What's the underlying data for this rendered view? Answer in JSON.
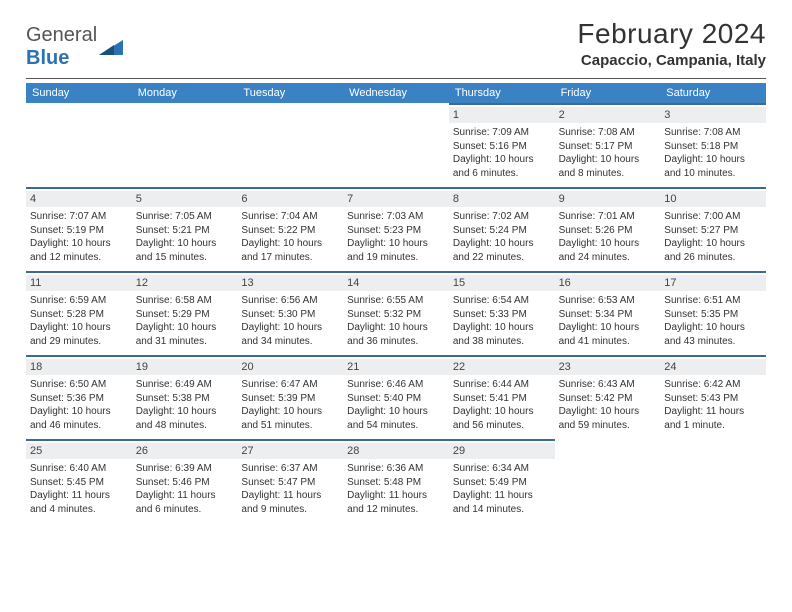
{
  "logo": {
    "word1": "General",
    "word2": "Blue"
  },
  "title": "February 2024",
  "location": "Capaccio, Campania, Italy",
  "colors": {
    "header_bg": "#3b82c4",
    "header_text": "#ffffff",
    "cell_border": "#3b6a94",
    "datenum_bg": "#eceeef",
    "logo_blue": "#2a72b5"
  },
  "day_headers": [
    "Sunday",
    "Monday",
    "Tuesday",
    "Wednesday",
    "Thursday",
    "Friday",
    "Saturday"
  ],
  "grid_cols": 7,
  "first_weekday_index": 4,
  "days": [
    {
      "n": 1,
      "sunrise": "7:09 AM",
      "sunset": "5:16 PM",
      "daylight": "10 hours and 6 minutes."
    },
    {
      "n": 2,
      "sunrise": "7:08 AM",
      "sunset": "5:17 PM",
      "daylight": "10 hours and 8 minutes."
    },
    {
      "n": 3,
      "sunrise": "7:08 AM",
      "sunset": "5:18 PM",
      "daylight": "10 hours and 10 minutes."
    },
    {
      "n": 4,
      "sunrise": "7:07 AM",
      "sunset": "5:19 PM",
      "daylight": "10 hours and 12 minutes."
    },
    {
      "n": 5,
      "sunrise": "7:05 AM",
      "sunset": "5:21 PM",
      "daylight": "10 hours and 15 minutes."
    },
    {
      "n": 6,
      "sunrise": "7:04 AM",
      "sunset": "5:22 PM",
      "daylight": "10 hours and 17 minutes."
    },
    {
      "n": 7,
      "sunrise": "7:03 AM",
      "sunset": "5:23 PM",
      "daylight": "10 hours and 19 minutes."
    },
    {
      "n": 8,
      "sunrise": "7:02 AM",
      "sunset": "5:24 PM",
      "daylight": "10 hours and 22 minutes."
    },
    {
      "n": 9,
      "sunrise": "7:01 AM",
      "sunset": "5:26 PM",
      "daylight": "10 hours and 24 minutes."
    },
    {
      "n": 10,
      "sunrise": "7:00 AM",
      "sunset": "5:27 PM",
      "daylight": "10 hours and 26 minutes."
    },
    {
      "n": 11,
      "sunrise": "6:59 AM",
      "sunset": "5:28 PM",
      "daylight": "10 hours and 29 minutes."
    },
    {
      "n": 12,
      "sunrise": "6:58 AM",
      "sunset": "5:29 PM",
      "daylight": "10 hours and 31 minutes."
    },
    {
      "n": 13,
      "sunrise": "6:56 AM",
      "sunset": "5:30 PM",
      "daylight": "10 hours and 34 minutes."
    },
    {
      "n": 14,
      "sunrise": "6:55 AM",
      "sunset": "5:32 PM",
      "daylight": "10 hours and 36 minutes."
    },
    {
      "n": 15,
      "sunrise": "6:54 AM",
      "sunset": "5:33 PM",
      "daylight": "10 hours and 38 minutes."
    },
    {
      "n": 16,
      "sunrise": "6:53 AM",
      "sunset": "5:34 PM",
      "daylight": "10 hours and 41 minutes."
    },
    {
      "n": 17,
      "sunrise": "6:51 AM",
      "sunset": "5:35 PM",
      "daylight": "10 hours and 43 minutes."
    },
    {
      "n": 18,
      "sunrise": "6:50 AM",
      "sunset": "5:36 PM",
      "daylight": "10 hours and 46 minutes."
    },
    {
      "n": 19,
      "sunrise": "6:49 AM",
      "sunset": "5:38 PM",
      "daylight": "10 hours and 48 minutes."
    },
    {
      "n": 20,
      "sunrise": "6:47 AM",
      "sunset": "5:39 PM",
      "daylight": "10 hours and 51 minutes."
    },
    {
      "n": 21,
      "sunrise": "6:46 AM",
      "sunset": "5:40 PM",
      "daylight": "10 hours and 54 minutes."
    },
    {
      "n": 22,
      "sunrise": "6:44 AM",
      "sunset": "5:41 PM",
      "daylight": "10 hours and 56 minutes."
    },
    {
      "n": 23,
      "sunrise": "6:43 AM",
      "sunset": "5:42 PM",
      "daylight": "10 hours and 59 minutes."
    },
    {
      "n": 24,
      "sunrise": "6:42 AM",
      "sunset": "5:43 PM",
      "daylight": "11 hours and 1 minute."
    },
    {
      "n": 25,
      "sunrise": "6:40 AM",
      "sunset": "5:45 PM",
      "daylight": "11 hours and 4 minutes."
    },
    {
      "n": 26,
      "sunrise": "6:39 AM",
      "sunset": "5:46 PM",
      "daylight": "11 hours and 6 minutes."
    },
    {
      "n": 27,
      "sunrise": "6:37 AM",
      "sunset": "5:47 PM",
      "daylight": "11 hours and 9 minutes."
    },
    {
      "n": 28,
      "sunrise": "6:36 AM",
      "sunset": "5:48 PM",
      "daylight": "11 hours and 12 minutes."
    },
    {
      "n": 29,
      "sunrise": "6:34 AM",
      "sunset": "5:49 PM",
      "daylight": "11 hours and 14 minutes."
    }
  ],
  "labels": {
    "sunrise": "Sunrise:",
    "sunset": "Sunset:",
    "daylight": "Daylight:"
  }
}
